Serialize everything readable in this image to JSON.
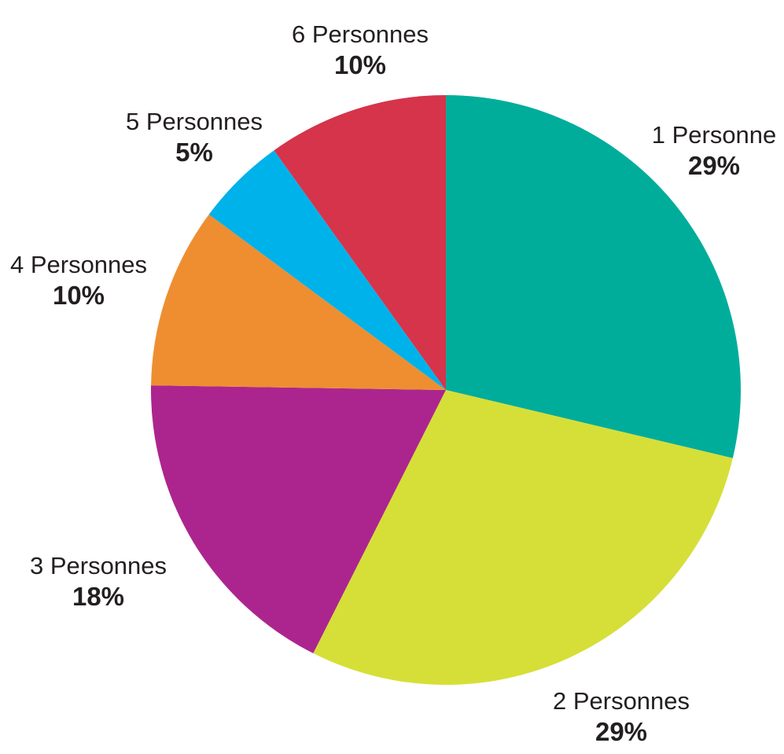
{
  "chart_data": {
    "type": "pie",
    "title": "",
    "categories": [
      "1 Personne",
      "2 Personnes",
      "3 Personnes",
      "4 Personnes",
      "5 Personnes",
      "6 Personnes"
    ],
    "values": [
      29,
      29,
      18,
      10,
      5,
      10
    ],
    "value_labels": [
      "29%",
      "29%",
      "18%",
      "10%",
      "5%",
      "10%"
    ],
    "colors": [
      "#00ad9b",
      "#d6df38",
      "#ac258e",
      "#ee8e31",
      "#00b2ea",
      "#d5344b"
    ],
    "start_angle_deg": 0,
    "direction": "clockwise",
    "legend": "none"
  }
}
